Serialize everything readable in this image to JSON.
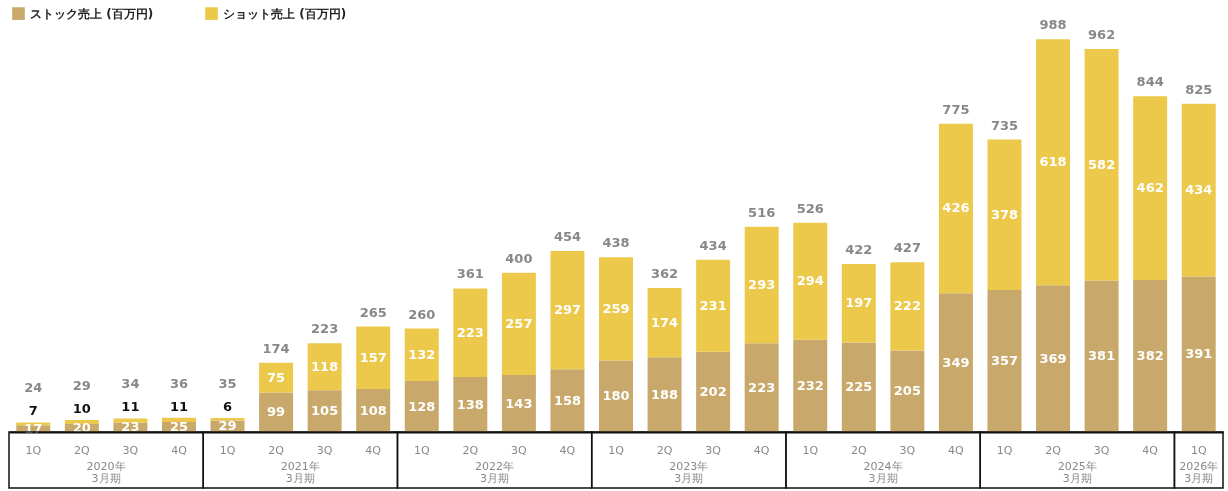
{
  "chart_data": {
    "type": "bar",
    "stacked": true,
    "data_labels": true,
    "legend": "top left",
    "categories": [
      "1Q",
      "2Q",
      "3Q",
      "4Q",
      "1Q",
      "2Q",
      "3Q",
      "4Q",
      "1Q",
      "2Q",
      "3Q",
      "4Q",
      "1Q",
      "2Q",
      "3Q",
      "4Q",
      "1Q",
      "2Q",
      "3Q",
      "4Q",
      "1Q",
      "2Q",
      "3Q",
      "4Q",
      "1Q"
    ],
    "series": [
      {
        "name": "ストック売上 (百万円)",
        "color": "#c8a96b",
        "values": [
          17,
          20,
          23,
          25,
          29,
          99,
          105,
          108,
          128,
          138,
          143,
          158,
          180,
          188,
          202,
          223,
          232,
          225,
          205,
          349,
          357,
          369,
          381,
          382,
          391
        ]
      },
      {
        "name": "ショット売上 (百万円)",
        "color": "#ecc94b",
        "values": [
          7,
          10,
          11,
          11,
          6,
          75,
          118,
          157,
          132,
          223,
          257,
          297,
          259,
          174,
          231,
          293,
          294,
          197,
          222,
          426,
          378,
          618,
          582,
          462,
          434
        ]
      }
    ],
    "totals": [
      "24",
      "29",
      "34",
      "36",
      "35",
      "174",
      "223",
      "265",
      "260",
      "361",
      "400",
      "454",
      "438",
      "362",
      "434",
      "516",
      "526",
      "422",
      "427",
      "775",
      "735",
      "988",
      "962",
      "844",
      "825"
    ],
    "annotations": [
      "2020年\n3月期",
      "2021年\n3月期",
      "2022年\n3月期",
      "2023年\n3月期",
      "2024年\n3月期",
      "2025年\n3月期",
      "2026年\n3月期"
    ]
  }
}
